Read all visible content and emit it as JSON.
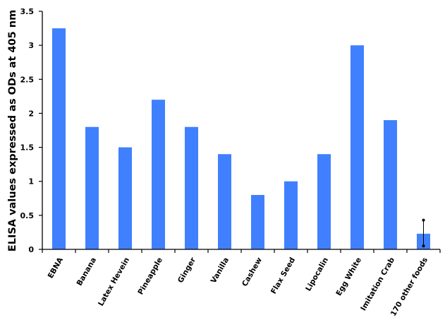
{
  "chart_data": {
    "type": "bar",
    "title": "",
    "xlabel": "",
    "ylabel": "ELISA values expressed as ODs at 405 nm",
    "ylim": [
      0,
      3.5
    ],
    "yticks": [
      "0",
      "0.5",
      "1",
      "1.5",
      "2",
      "2.5",
      "3",
      "3.5"
    ],
    "grid": false,
    "legend": "none",
    "bar_color": "#4080FF",
    "categories": [
      "EBNA",
      "Banana",
      "Latex Hevein",
      "Pineapple",
      "Ginger",
      "Vanilla",
      "Cashew",
      "Flax Seed",
      "Lipocalin",
      "Egg White",
      "Imitation Crab",
      "170 other foods"
    ],
    "values": [
      3.25,
      1.8,
      1.5,
      2.2,
      1.8,
      1.4,
      0.8,
      1.0,
      1.4,
      3.0,
      1.9,
      0.23
    ],
    "error_bars": [
      {
        "category": "170 other foods",
        "low": 0.05,
        "high": 0.43
      }
    ]
  }
}
